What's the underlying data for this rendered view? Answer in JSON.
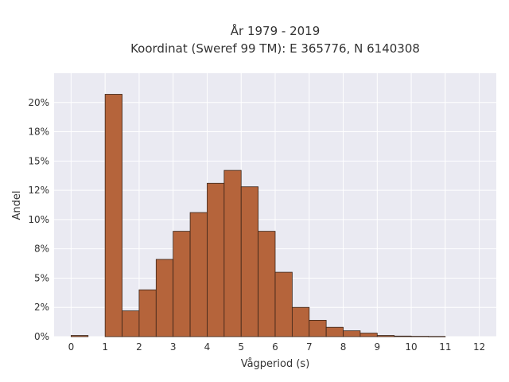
{
  "chart_data": {
    "type": "bar",
    "title": "År 1979 - 2019",
    "subtitle": "Koordinat (Sweref 99 TM): E 365776, N 6140308",
    "xlabel": "Vågperiod (s)",
    "ylabel": "Andel",
    "bin_width": 0.5,
    "bins": [
      0,
      0.5,
      1,
      1.5,
      2,
      2.5,
      3,
      3.5,
      4,
      4.5,
      5,
      5.5,
      6,
      6.5,
      7,
      7.5,
      8,
      8.5,
      9,
      9.5,
      10,
      10.5,
      11,
      11.5,
      12
    ],
    "values": [
      0.1,
      0,
      20.7,
      2.2,
      4.0,
      6.6,
      9.0,
      10.6,
      13.1,
      14.2,
      12.8,
      9.0,
      5.5,
      2.5,
      1.4,
      0.8,
      0.5,
      0.3,
      0.1,
      0.05,
      0.03,
      0.02,
      0,
      0,
      0
    ],
    "xlim": [
      -0.5,
      12.5
    ],
    "ylim": [
      0,
      22.5
    ],
    "xticks": [
      0,
      1,
      2,
      3,
      4,
      5,
      6,
      7,
      8,
      9,
      10,
      11,
      12
    ],
    "yticks": [
      {
        "value": 0,
        "label": "0%"
      },
      {
        "value": 2.5,
        "label": "2%"
      },
      {
        "value": 5,
        "label": "5%"
      },
      {
        "value": 7.5,
        "label": "8%"
      },
      {
        "value": 10,
        "label": "10%"
      },
      {
        "value": 12.5,
        "label": "12%"
      },
      {
        "value": 15,
        "label": "15%"
      },
      {
        "value": 17.5,
        "label": "18%"
      },
      {
        "value": 20,
        "label": "20%"
      }
    ],
    "grid": true,
    "colors": {
      "bar_fill": "#b5643b",
      "bar_stroke": "#3a2418",
      "plot_bg": "#eaeaf2",
      "grid": "#ffffff"
    }
  }
}
